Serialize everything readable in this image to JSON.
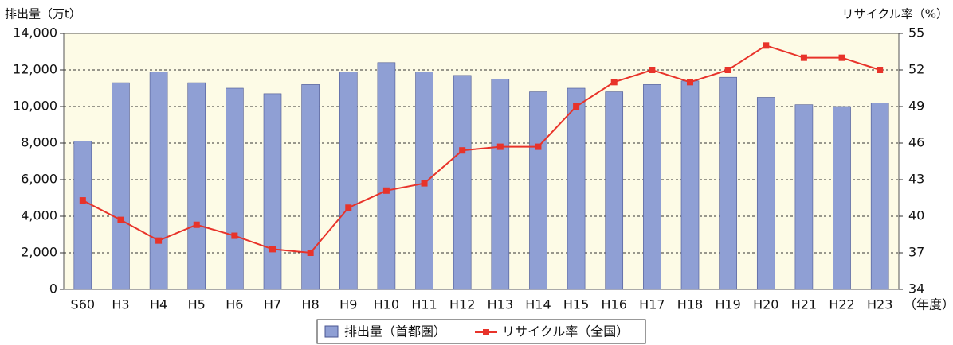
{
  "chart_data": {
    "type": "bar-line",
    "y_label": "排出量（万t）",
    "y2_label": "リサイクル率（%）",
    "x_label": "（年度）",
    "categories": [
      "S60",
      "H3",
      "H4",
      "H5",
      "H6",
      "H7",
      "H8",
      "H9",
      "H10",
      "H11",
      "H12",
      "H13",
      "H14",
      "H15",
      "H16",
      "H17",
      "H18",
      "H19",
      "H20",
      "H21",
      "H22",
      "H23"
    ],
    "series": [
      {
        "name": "排出量（首都圏）",
        "type": "bar",
        "color": "#8f9fd4",
        "values": [
          8100,
          11300,
          11900,
          11300,
          11000,
          10700,
          11200,
          11900,
          12400,
          11900,
          11700,
          11500,
          10800,
          11000,
          10800,
          11200,
          11400,
          11600,
          10500,
          10100,
          10000,
          10200
        ]
      },
      {
        "name": "リサイクル率（全国）",
        "type": "line",
        "axis": "y2",
        "color": "#e8332a",
        "values": [
          41.3,
          39.7,
          38.0,
          39.3,
          38.4,
          37.3,
          37.0,
          40.7,
          42.1,
          42.7,
          45.4,
          45.7,
          45.7,
          49,
          51,
          52,
          51,
          52,
          54,
          53,
          53,
          52
        ]
      }
    ],
    "ylim": [
      0,
      14000
    ],
    "yticks": [
      0,
      {
        "value": 2000,
        "label": "2,000"
      },
      {
        "value": 4000,
        "label": "4,000"
      },
      {
        "value": 6000,
        "label": "6,000"
      },
      {
        "value": 8000,
        "label": "8,000"
      },
      {
        "value": 10000,
        "label": "10,000"
      },
      {
        "value": 12000,
        "label": "12,000"
      },
      {
        "value": 14000,
        "label": "14,000"
      }
    ],
    "y2lim": [
      34,
      55
    ],
    "y2ticks": [
      34,
      37,
      40,
      43,
      46,
      49,
      52,
      55
    ],
    "grid": true,
    "legend": "bottom"
  }
}
